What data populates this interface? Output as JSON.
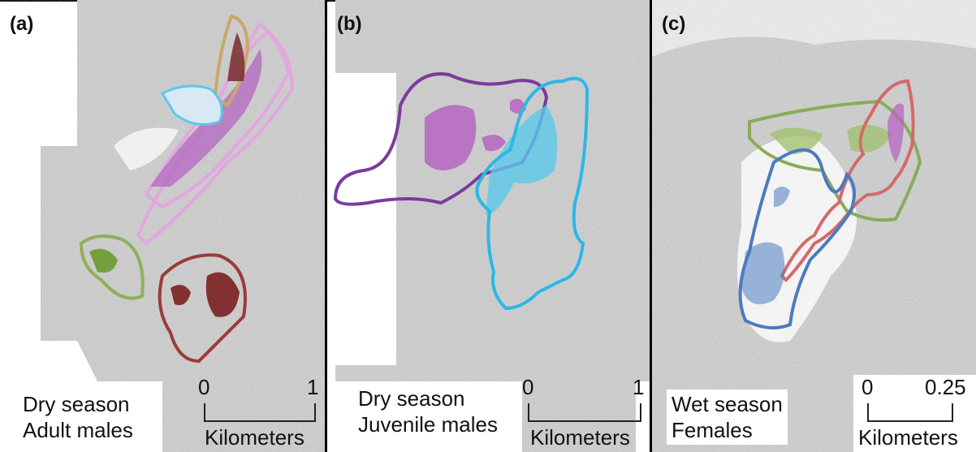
{
  "panels": [
    {
      "label": "(a)",
      "caption_line1": "Dry season",
      "caption_line2": "Adult males",
      "scale_min": "0",
      "scale_max": "1",
      "scale_unit": "Kilometers"
    },
    {
      "label": "(b)",
      "caption_line1": "Dry season",
      "caption_line2": "Juvenile males",
      "scale_min": "0",
      "scale_max": "1",
      "scale_unit": "Kilometers"
    },
    {
      "label": "(c)",
      "caption_line1": "Wet season",
      "caption_line2": "Females",
      "scale_min": "0",
      "scale_max": "0.25",
      "scale_unit": "Kilometers"
    }
  ],
  "colors": {
    "background_gray": "#c9c9c9",
    "pink": "#e3a6e0",
    "magenta": "#b45fc0",
    "tan": "#c9a86a",
    "dark_brown": "#7a2a2a",
    "light_blue": "#5bc8ea",
    "green": "#8fb05a",
    "dark_red": "#9b3b3b",
    "purple": "#7b3b9b",
    "cyan": "#2bb8e6",
    "blue": "#4a7bbf",
    "red": "#d46a6a",
    "olive": "#8aab5a"
  }
}
